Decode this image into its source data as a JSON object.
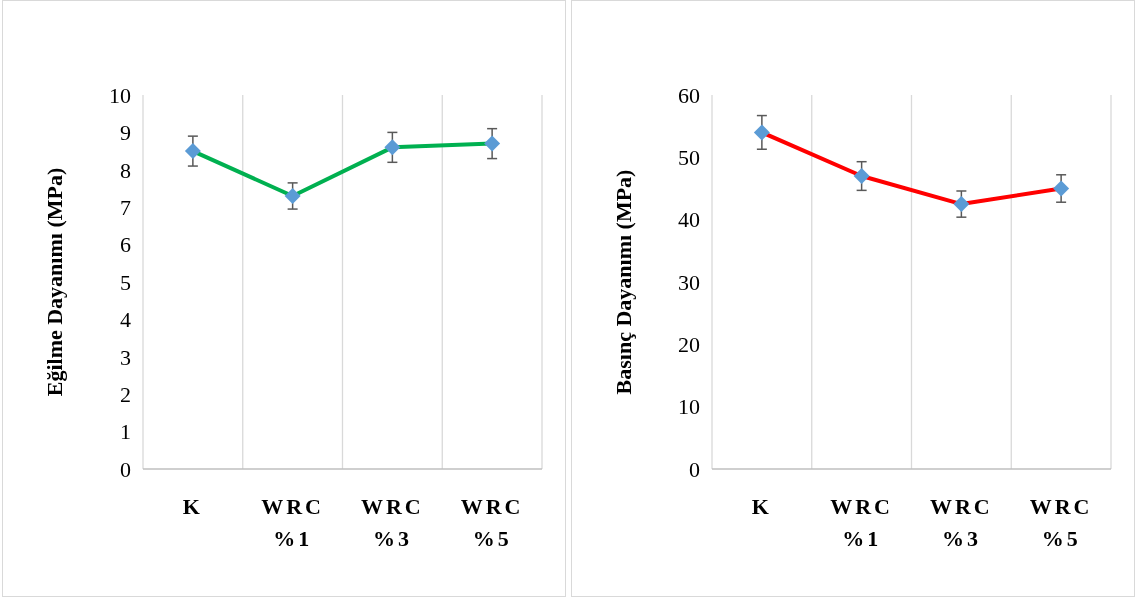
{
  "chart_data": [
    {
      "type": "line",
      "ylabel": "Eğilme Dayanımı (MPa)",
      "categories": [
        "K",
        "WRC %1",
        "WRC %3",
        "WRC %5"
      ],
      "values": [
        8.5,
        7.3,
        8.6,
        8.7
      ],
      "errors": [
        0.4,
        0.35,
        0.4,
        0.4
      ],
      "color": "#00b050",
      "marker": "diamond",
      "ylim": [
        0,
        10
      ],
      "yticks": [
        0,
        1,
        2,
        3,
        4,
        5,
        6,
        7,
        8,
        9,
        10
      ],
      "grid": "x"
    },
    {
      "type": "line",
      "ylabel": "Basınç Dayanımı (MPa)",
      "categories": [
        "K",
        "WRC %1",
        "WRC %3",
        "WRC %5"
      ],
      "values": [
        54,
        47,
        42.5,
        45
      ],
      "errors": [
        2.7,
        2.3,
        2.1,
        2.2
      ],
      "color": "#ff0000",
      "marker": "diamond",
      "ylim": [
        0,
        60
      ],
      "yticks": [
        0,
        10,
        20,
        30,
        40,
        50,
        60
      ],
      "grid": "x"
    }
  ]
}
